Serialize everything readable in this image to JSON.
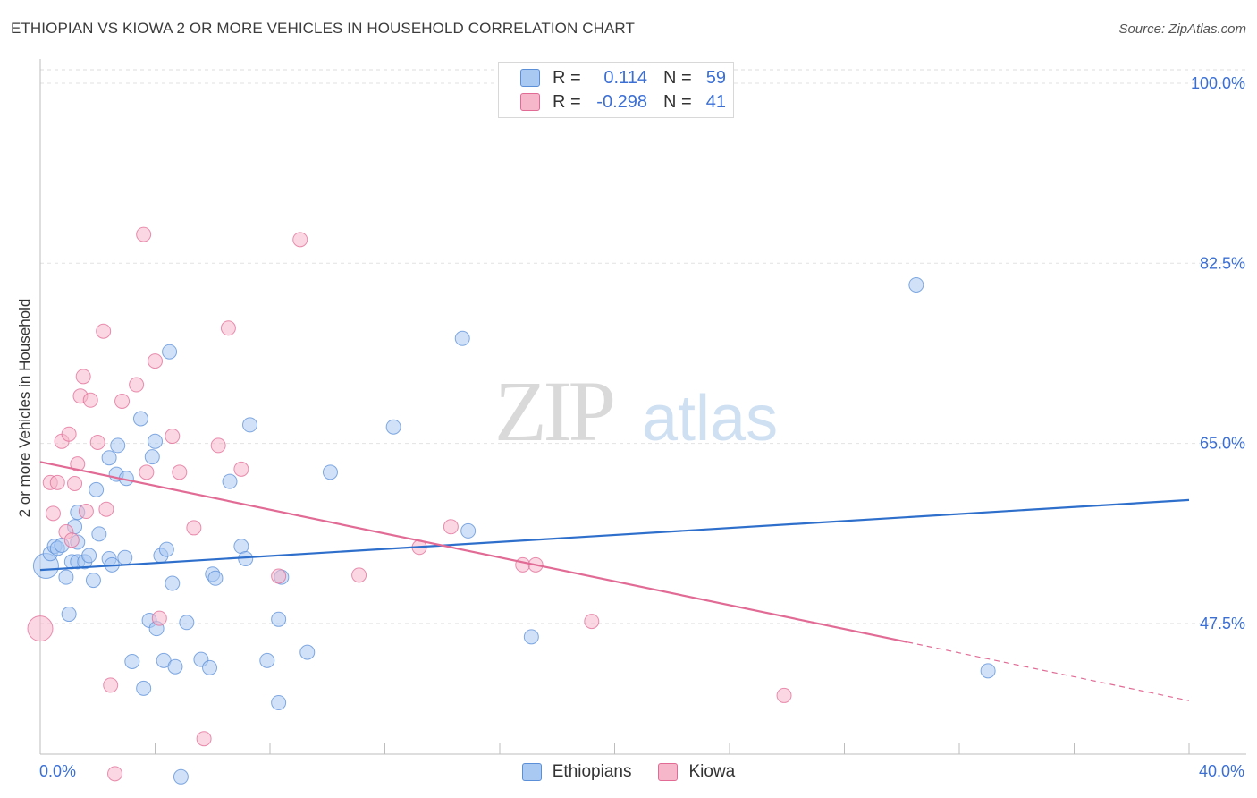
{
  "title": "ETHIOPIAN VS KIOWA 2 OR MORE VEHICLES IN HOUSEHOLD CORRELATION CHART",
  "source": "Source: ZipAtlas.com",
  "watermark": {
    "zip": "ZIP",
    "atlas": "atlas"
  },
  "legend": {
    "rows": [
      {
        "r_label": "R =",
        "r_value": "0.114",
        "n_label": "N =",
        "n_value": "59",
        "color": "#a9c8f2"
      },
      {
        "r_label": "R =",
        "r_value": "-0.298",
        "n_label": "N =",
        "n_value": "41",
        "color": "#f6b7ca"
      }
    ]
  },
  "bottom_legend": [
    {
      "label": "Ethiopians",
      "color": "#a9c8f2"
    },
    {
      "label": "Kiowa",
      "color": "#f6b7ca"
    }
  ],
  "chart_data": {
    "type": "scatter",
    "title": "ETHIOPIAN VS KIOWA 2 OR MORE VEHICLES IN HOUSEHOLD CORRELATION CHART",
    "xlabel": "",
    "ylabel": "2 or more Vehicles in Household",
    "xlim": [
      0,
      40
    ],
    "ylim": [
      34.8,
      102
    ],
    "x_tick_labels": [
      "0.0%",
      "40.0%"
    ],
    "y_ticks": [
      100,
      82.5,
      65,
      47.5
    ],
    "y_tick_labels": [
      "100.0%",
      "82.5%",
      "65.0%",
      "47.5%"
    ],
    "series": [
      {
        "name": "Ethiopians",
        "color": "#5b8fd8",
        "fill": "#a9c8f2",
        "points": [
          [
            0.2,
            53.1
          ],
          [
            0.35,
            54.3
          ],
          [
            0.5,
            55.0
          ],
          [
            0.6,
            54.8
          ],
          [
            0.75,
            55.1
          ],
          [
            1.2,
            56.9
          ],
          [
            1.3,
            58.3
          ],
          [
            1.1,
            53.5
          ],
          [
            1.0,
            48.4
          ],
          [
            1.3,
            53.5
          ],
          [
            0.9,
            52.0
          ],
          [
            1.55,
            53.5
          ],
          [
            1.7,
            54.1
          ],
          [
            1.85,
            51.7
          ],
          [
            2.05,
            56.2
          ],
          [
            1.95,
            60.5
          ],
          [
            2.4,
            53.8
          ],
          [
            2.5,
            53.2
          ],
          [
            2.4,
            63.6
          ],
          [
            2.65,
            62.0
          ],
          [
            2.7,
            64.8
          ],
          [
            2.95,
            53.9
          ],
          [
            3.0,
            61.6
          ],
          [
            3.2,
            43.8
          ],
          [
            3.5,
            67.4
          ],
          [
            3.6,
            41.2
          ],
          [
            3.8,
            47.8
          ],
          [
            4.0,
            65.2
          ],
          [
            4.05,
            47.0
          ],
          [
            4.2,
            54.1
          ],
          [
            4.3,
            43.9
          ],
          [
            4.4,
            54.7
          ],
          [
            4.5,
            73.9
          ],
          [
            4.6,
            51.4
          ],
          [
            4.7,
            43.3
          ],
          [
            5.1,
            47.6
          ],
          [
            6.6,
            61.3
          ],
          [
            5.6,
            44.0
          ],
          [
            5.9,
            43.2
          ],
          [
            6.0,
            52.3
          ],
          [
            6.1,
            51.9
          ],
          [
            7.0,
            55.0
          ],
          [
            7.15,
            53.8
          ],
          [
            7.3,
            66.8
          ],
          [
            8.4,
            52.0
          ],
          [
            7.9,
            43.9
          ],
          [
            8.3,
            39.8
          ],
          [
            8.3,
            47.9
          ],
          [
            9.3,
            44.7
          ],
          [
            10.1,
            62.2
          ],
          [
            12.3,
            66.6
          ],
          [
            14.7,
            75.2
          ],
          [
            14.9,
            56.5
          ],
          [
            17.1,
            46.2
          ],
          [
            4.9,
            32.6
          ],
          [
            30.5,
            80.4
          ],
          [
            33.0,
            42.9
          ],
          [
            1.3,
            55.4
          ],
          [
            3.9,
            63.7
          ]
        ]
      },
      {
        "name": "Kiowa",
        "color": "#e16b95",
        "fill": "#f6b7ca",
        "points": [
          [
            0.0,
            47.0
          ],
          [
            0.35,
            61.2
          ],
          [
            0.45,
            58.2
          ],
          [
            0.6,
            61.2
          ],
          [
            0.75,
            65.2
          ],
          [
            0.9,
            56.4
          ],
          [
            1.0,
            65.9
          ],
          [
            1.1,
            55.6
          ],
          [
            1.3,
            63.0
          ],
          [
            1.4,
            69.6
          ],
          [
            1.5,
            71.5
          ],
          [
            1.6,
            58.4
          ],
          [
            1.75,
            69.2
          ],
          [
            2.0,
            65.1
          ],
          [
            2.2,
            75.9
          ],
          [
            2.3,
            58.6
          ],
          [
            2.45,
            41.5
          ],
          [
            2.6,
            32.9
          ],
          [
            2.85,
            69.1
          ],
          [
            3.35,
            70.7
          ],
          [
            3.6,
            85.3
          ],
          [
            3.7,
            62.2
          ],
          [
            4.0,
            73.0
          ],
          [
            4.15,
            48.0
          ],
          [
            4.6,
            65.7
          ],
          [
            4.85,
            62.2
          ],
          [
            5.35,
            56.8
          ],
          [
            5.7,
            36.3
          ],
          [
            6.2,
            64.8
          ],
          [
            6.55,
            76.2
          ],
          [
            7.0,
            62.5
          ],
          [
            8.3,
            52.1
          ],
          [
            9.05,
            84.8
          ],
          [
            11.1,
            52.2
          ],
          [
            13.2,
            54.9
          ],
          [
            14.3,
            56.9
          ],
          [
            16.8,
            53.2
          ],
          [
            17.25,
            53.2
          ],
          [
            19.2,
            47.7
          ],
          [
            25.9,
            40.5
          ],
          [
            1.2,
            61.1
          ]
        ]
      }
    ],
    "trend_lines": [
      {
        "series": "Ethiopians",
        "x": [
          0,
          40
        ],
        "y": [
          52.7,
          59.5
        ],
        "dashed_from": null
      },
      {
        "series": "Kiowa",
        "x": [
          0,
          40
        ],
        "y": [
          63.2,
          40.0
        ],
        "dashed_from": 30.2
      }
    ]
  }
}
